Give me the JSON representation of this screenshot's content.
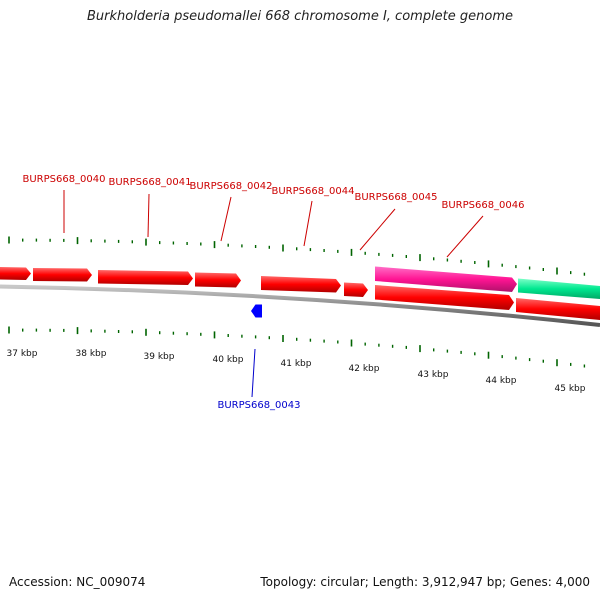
{
  "title": "Burkholderia pseudomallei 668 chromosome I, complete genome",
  "footer": {
    "accession": "Accession: NC_009074",
    "stats": "Topology: circular; Length: 3,912,947 bp; Genes: 4,000"
  },
  "colors": {
    "forward_gene": "#ff0000",
    "pink_gene": "#ff1493",
    "green_gene": "#00e890",
    "reverse_gene": "#0000ff",
    "tick": "#006400",
    "backbone": "#808080",
    "forward_label": "#cc0000",
    "reverse_label": "#0000cc"
  },
  "scale_labels": [
    "37 kbp",
    "38 kbp",
    "39 kbp",
    "40 kbp",
    "41 kbp",
    "42 kbp",
    "43 kbp",
    "44 kbp",
    "45 kbp"
  ],
  "forward_labels": [
    "BURPS668_0040",
    "BURPS668_0041",
    "BURPS668_0042",
    "BURPS668_0044",
    "BURPS668_0045",
    "BURPS668_0046"
  ],
  "reverse_labels": [
    "BURPS668_0043"
  ]
}
